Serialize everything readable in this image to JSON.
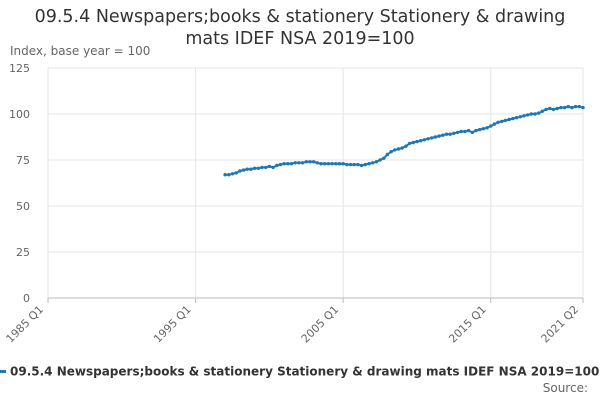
{
  "chart_data": {
    "type": "line",
    "title_lines": [
      "09.5.4 Newspapers;books & stationery Stationery & drawing",
      "mats IDEF NSA 2019=100"
    ],
    "ylabel": "Index, base year = 100",
    "xlabel": "",
    "ylim": [
      0,
      125
    ],
    "yticks": [
      0,
      25,
      50,
      75,
      100,
      125
    ],
    "xlim": [
      "1985 Q1",
      "2021 Q2"
    ],
    "xticks": [
      "1985 Q1",
      "1995 Q1",
      "2005 Q1",
      "2015 Q1",
      "2021 Q2"
    ],
    "grid": true,
    "legend_position": "bottom",
    "series": [
      {
        "name": "09.5.4 Newspapers;books & stationery Stationery & drawing mats IDEF NSA 2019=100",
        "color": "#1f77b4",
        "x": [
          "1997 Q1",
          "1997 Q2",
          "1997 Q3",
          "1997 Q4",
          "1998 Q1",
          "1998 Q2",
          "1998 Q3",
          "1998 Q4",
          "1999 Q1",
          "1999 Q2",
          "1999 Q3",
          "1999 Q4",
          "2000 Q1",
          "2000 Q2",
          "2000 Q3",
          "2000 Q4",
          "2001 Q1",
          "2001 Q2",
          "2001 Q3",
          "2001 Q4",
          "2002 Q1",
          "2002 Q2",
          "2002 Q3",
          "2002 Q4",
          "2003 Q1",
          "2003 Q2",
          "2003 Q3",
          "2003 Q4",
          "2004 Q1",
          "2004 Q2",
          "2004 Q3",
          "2004 Q4",
          "2005 Q1",
          "2005 Q2",
          "2005 Q3",
          "2005 Q4",
          "2006 Q1",
          "2006 Q2",
          "2006 Q3",
          "2006 Q4",
          "2007 Q1",
          "2007 Q2",
          "2007 Q3",
          "2007 Q4",
          "2008 Q1",
          "2008 Q2",
          "2008 Q3",
          "2008 Q4",
          "2009 Q1",
          "2009 Q2",
          "2009 Q3",
          "2009 Q4",
          "2010 Q1",
          "2010 Q2",
          "2010 Q3",
          "2010 Q4",
          "2011 Q1",
          "2011 Q2",
          "2011 Q3",
          "2011 Q4",
          "2012 Q1",
          "2012 Q2",
          "2012 Q3",
          "2012 Q4",
          "2013 Q1",
          "2013 Q2",
          "2013 Q3",
          "2013 Q4",
          "2014 Q1",
          "2014 Q2",
          "2014 Q3",
          "2014 Q4",
          "2015 Q1",
          "2015 Q2",
          "2015 Q3",
          "2015 Q4",
          "2016 Q1",
          "2016 Q2",
          "2016 Q3",
          "2016 Q4",
          "2017 Q1",
          "2017 Q2",
          "2017 Q3",
          "2017 Q4",
          "2018 Q1",
          "2018 Q2",
          "2018 Q3",
          "2018 Q4",
          "2019 Q1",
          "2019 Q2",
          "2019 Q3",
          "2019 Q4",
          "2020 Q1",
          "2020 Q2",
          "2020 Q3",
          "2020 Q4",
          "2021 Q1",
          "2021 Q2"
        ],
        "values": [
          67,
          67,
          67.5,
          68,
          69,
          69.5,
          70,
          70,
          70.5,
          70.5,
          71,
          71,
          71.5,
          71,
          72,
          72.5,
          73,
          73,
          73,
          73.5,
          73.5,
          73.5,
          74,
          74,
          74,
          73.5,
          73,
          73,
          73,
          73,
          73,
          73,
          73,
          72.5,
          72.5,
          72.5,
          72.5,
          72,
          72.5,
          73,
          73.5,
          74,
          75,
          76,
          78,
          79.5,
          80.5,
          81,
          81.5,
          82.5,
          84,
          84.5,
          85,
          85.5,
          86,
          86.5,
          87,
          87.5,
          88,
          88.5,
          89,
          89,
          89.5,
          90,
          90.5,
          90.5,
          91,
          90,
          91,
          91.5,
          92,
          92.5,
          93.5,
          94.5,
          95.5,
          96,
          96.5,
          97,
          97.5,
          98,
          98.5,
          99,
          99.5,
          100,
          100,
          100.5,
          101.5,
          102.5,
          103,
          102.5,
          103,
          103.5,
          103.5,
          104,
          103.5,
          104,
          104,
          103.5
        ]
      }
    ]
  },
  "legend": {
    "label": "09.5.4 Newspapers;books & stationery Stationery & drawing mats IDEF NSA 2019=100"
  },
  "source_label": "Source:"
}
